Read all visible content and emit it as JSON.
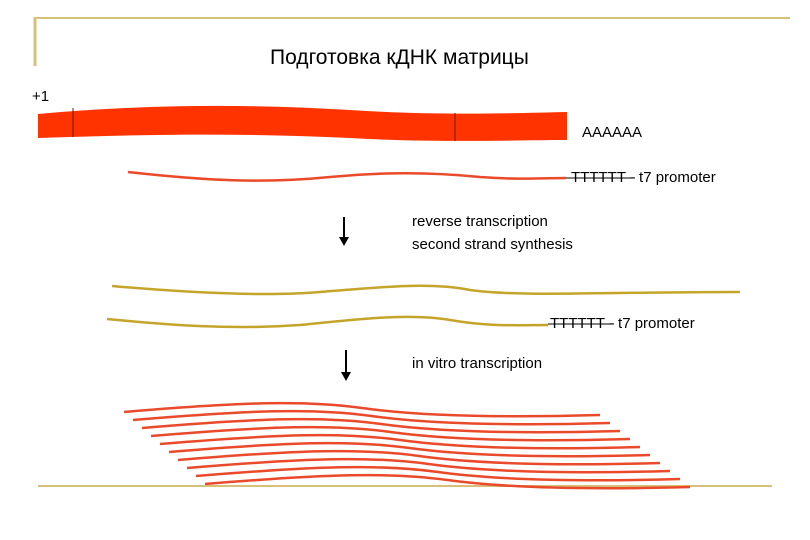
{
  "slide": {
    "title": "Подготовка кДНК матрицы",
    "start_marker": "+1",
    "polyA_label": "AAAAAA",
    "oligo_dt_t7_label_1": "TTTTTT - t7 promoter",
    "step1_line1": "reverse transcription",
    "step1_line2": "second strand synthesis",
    "oligo_dt_t7_label_2": "TTTTTT - t7 promoter",
    "step2_label": "in vitro transcription"
  },
  "colors": {
    "frame_gold": "#d7c07a",
    "mrna_red": "#ff3300",
    "strand_red": "#ea4a2a",
    "cdna_gold": "#c4a52a",
    "arrow_black": "#000000"
  },
  "icons": {
    "step_arrow": "down-arrow-icon"
  }
}
